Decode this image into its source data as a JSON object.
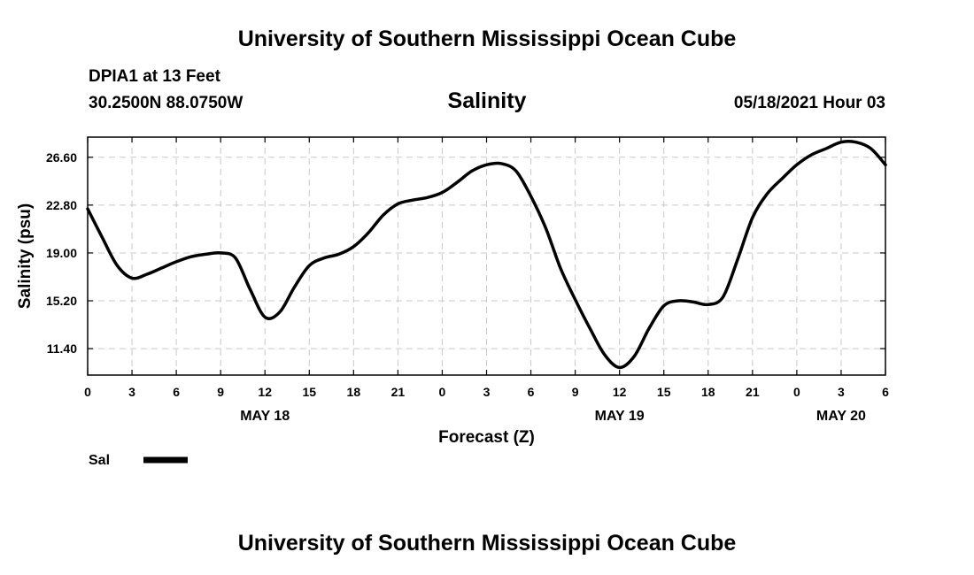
{
  "header": {
    "title_top": "University of Southern Mississippi Ocean Cube",
    "station": "DPIA1 at 13 Feet",
    "coordinates": "30.2500N  88.0750W",
    "chart_title": "Salinity",
    "datetime": "05/18/2021 Hour 03"
  },
  "footer": {
    "title_bottom": "University of Southern Mississippi Ocean Cube"
  },
  "legend": {
    "label": "Sal"
  },
  "colors": {
    "line": "#000000",
    "grid": "#c8c8c8"
  },
  "chart_data": {
    "type": "line",
    "xlabel": "Forecast (Z)",
    "ylabel": "Salinity (psu)",
    "xlim": [
      0,
      54
    ],
    "ylim": [
      9.3,
      28.2
    ],
    "grid": true,
    "legend_position": "bottom-left",
    "x_ticks": [
      0,
      3,
      6,
      9,
      12,
      15,
      18,
      21,
      24,
      27,
      30,
      33,
      36,
      39,
      42,
      45,
      48,
      51,
      54
    ],
    "x_tick_labels": [
      "0",
      "3",
      "6",
      "9",
      "12",
      "15",
      "18",
      "21",
      "0",
      "3",
      "6",
      "9",
      "12",
      "15",
      "18",
      "21",
      "0",
      "3",
      "6"
    ],
    "day_labels": [
      {
        "x": 12,
        "label": "MAY 18"
      },
      {
        "x": 36,
        "label": "MAY 19"
      },
      {
        "x": 51,
        "label": "MAY 20"
      }
    ],
    "y_ticks": [
      11.4,
      15.2,
      19.0,
      22.8,
      26.6
    ],
    "y_tick_labels": [
      "11.40",
      "15.20",
      "19.00",
      "22.80",
      "26.60"
    ],
    "series": [
      {
        "name": "Sal",
        "x": [
          0,
          1,
          2,
          3,
          4,
          5,
          6,
          7,
          8,
          9,
          10,
          11,
          12,
          13,
          14,
          15,
          16,
          17,
          18,
          19,
          20,
          21,
          22,
          23,
          24,
          25,
          26,
          27,
          28,
          29,
          30,
          31,
          32,
          33,
          34,
          35,
          36,
          37,
          38,
          39,
          40,
          41,
          42,
          43,
          44,
          45,
          46,
          47,
          48,
          49,
          50,
          51,
          52,
          53,
          54
        ],
        "values": [
          22.5,
          20.2,
          18.0,
          17.0,
          17.3,
          17.8,
          18.3,
          18.7,
          18.9,
          19.0,
          18.6,
          16.1,
          13.9,
          14.3,
          16.3,
          18.0,
          18.6,
          18.9,
          19.5,
          20.6,
          22.0,
          22.9,
          23.2,
          23.4,
          23.8,
          24.6,
          25.5,
          26.0,
          26.1,
          25.5,
          23.5,
          21.0,
          17.8,
          15.3,
          13.0,
          10.9,
          9.9,
          10.8,
          13.0,
          14.8,
          15.2,
          15.1,
          14.9,
          15.5,
          18.5,
          21.8,
          23.7,
          24.9,
          26.0,
          26.8,
          27.3,
          27.8,
          27.8,
          27.3,
          26.0
        ]
      }
    ]
  }
}
